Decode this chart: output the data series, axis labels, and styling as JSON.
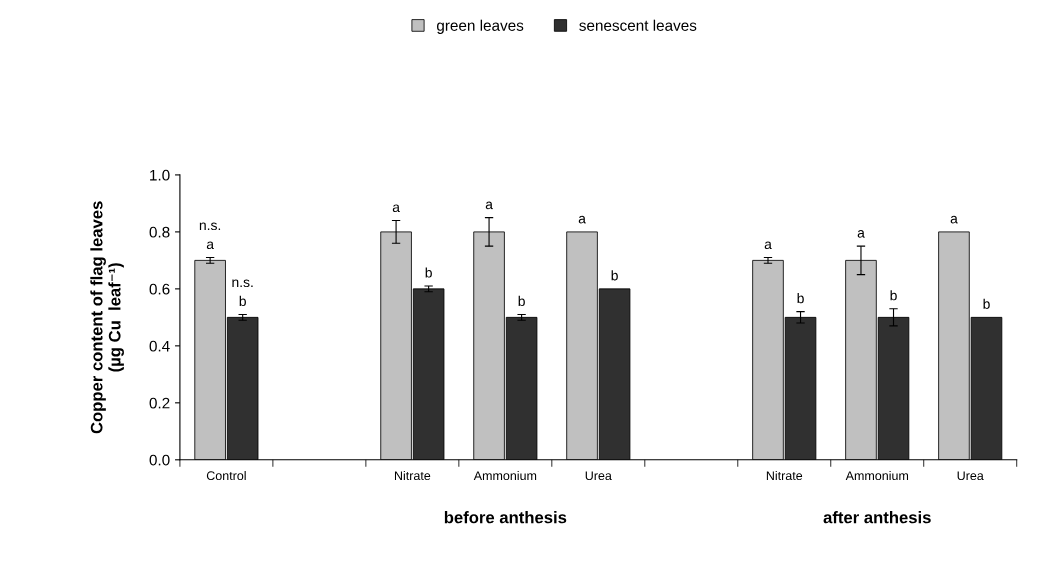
{
  "chart_data": {
    "type": "bar",
    "ylabel": "Copper content of flag leaves\n(µg Cu  leaf⁻¹)",
    "categories": [
      "Control",
      null,
      "Nitrate",
      "Ammonium",
      "Urea",
      null,
      "Nitrate",
      "Ammonium",
      "Urea"
    ],
    "series": [
      {
        "name": "green leaves",
        "color": "#c0c0c0",
        "values": [
          0.7,
          null,
          0.8,
          0.8,
          0.8,
          null,
          0.7,
          0.7,
          0.8
        ],
        "errors": [
          0.01,
          null,
          0.04,
          0.05,
          null,
          null,
          0.01,
          0.05,
          null
        ],
        "value_labels": [
          "n.s.\na",
          null,
          "a",
          "a",
          "a",
          null,
          "a",
          "a",
          "a"
        ]
      },
      {
        "name": "senescent leaves",
        "color": "#303030",
        "values": [
          0.5,
          null,
          0.6,
          0.5,
          0.6,
          null,
          0.5,
          0.5,
          0.5
        ],
        "errors": [
          0.01,
          null,
          0.01,
          0.01,
          null,
          null,
          0.02,
          0.03,
          null
        ],
        "value_labels": [
          "n.s.\nb",
          null,
          "b",
          "b",
          "b",
          null,
          "b",
          "b",
          "b"
        ]
      }
    ],
    "ylim": [
      0,
      1.0
    ],
    "yticks": [
      {
        "value": 0,
        "label": "0.0"
      },
      {
        "value": 0.2,
        "label": "0.2"
      },
      {
        "value": 0.4,
        "label": "0.4"
      },
      {
        "value": 0.6,
        "label": "0.6"
      },
      {
        "value": 0.8,
        "label": "0.8"
      },
      {
        "value": 1.0,
        "label": "1.0"
      }
    ],
    "annotations": [
      "before anthesis",
      "after anthesis"
    ],
    "legend": "top",
    "grid": false
  }
}
